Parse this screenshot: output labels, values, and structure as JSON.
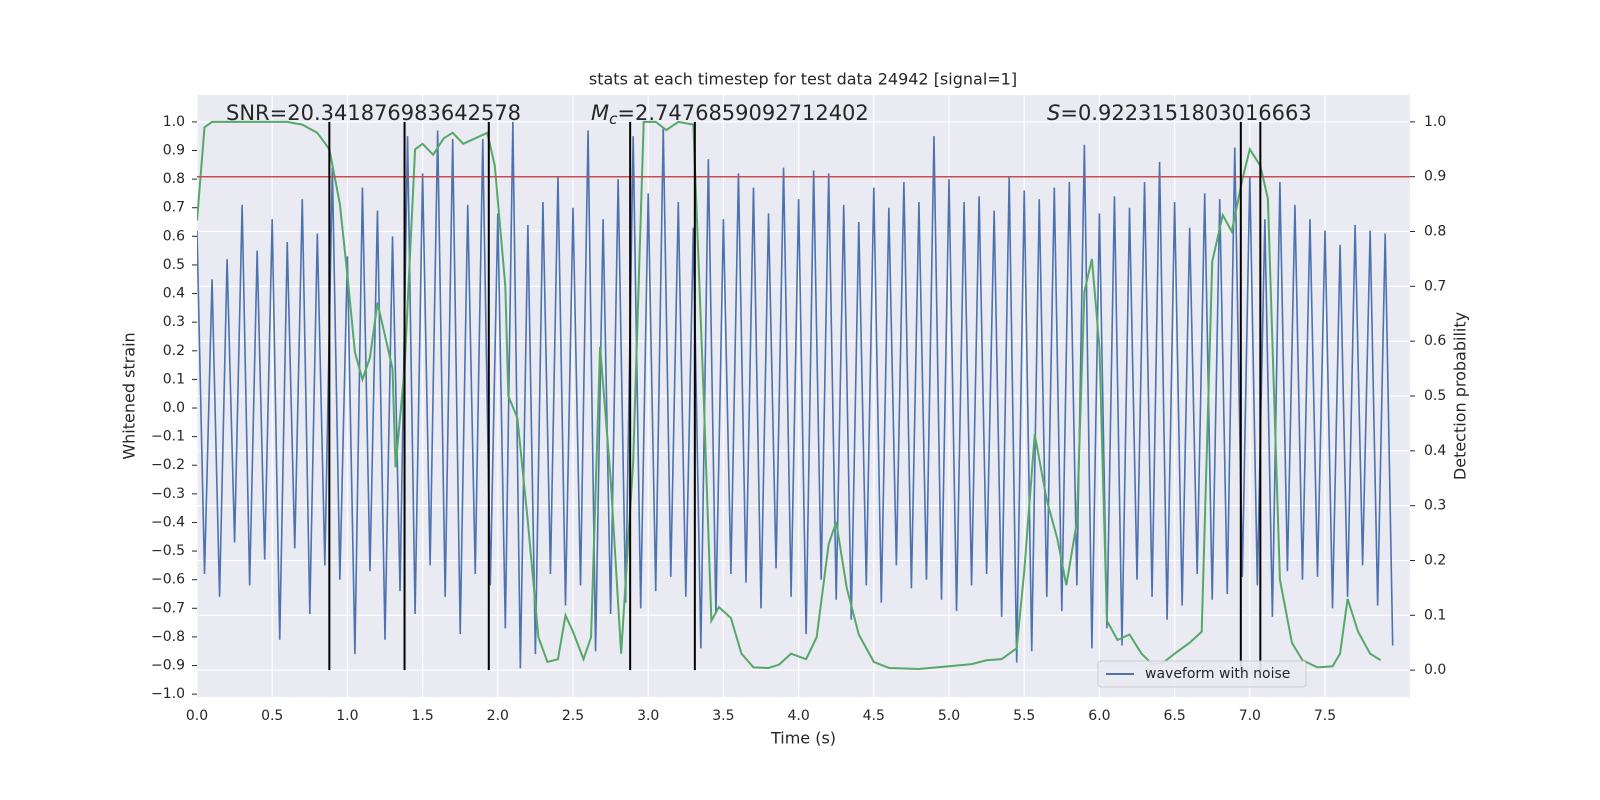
{
  "chart_data": {
    "type": "line",
    "title": "stats at each timestep for test data 24942 [signal=1]",
    "x_label": "Time (s)",
    "y_label": "Whitened strain",
    "y2_label": "Detection probability",
    "annotations": {
      "snr": "SNR=20.341876983642578",
      "mc": {
        "symbol": "M",
        "subscript": "c",
        "text": "=2.7476859092712402"
      },
      "s": {
        "symbol": "S",
        "text": "=0.9223151803016663"
      }
    },
    "xlim": [
      0,
      8.065
    ],
    "ylim": [
      -1.01,
      1.094
    ],
    "y2lim": [
      -0.049,
      1.049
    ],
    "xticks": [
      {
        "value": 0,
        "label": "0.0"
      },
      0.5,
      {
        "value": 1,
        "label": "1.0"
      },
      1.5,
      {
        "value": 2,
        "label": "2.0"
      },
      2.5,
      {
        "value": 3,
        "label": "3.0"
      },
      3.5,
      {
        "value": 4,
        "label": "4.0"
      },
      4.5,
      {
        "value": 5,
        "label": "5.0"
      },
      5.5,
      {
        "value": 6,
        "label": "6.0"
      },
      6.5,
      {
        "value": 7,
        "label": "7.0"
      },
      7.5
    ],
    "yticks": [
      {
        "value": -1,
        "label": "−1.0"
      },
      {
        "value": -0.9,
        "label": "−0.9"
      },
      {
        "value": -0.8,
        "label": "−0.8"
      },
      {
        "value": -0.7,
        "label": "−0.7"
      },
      {
        "value": -0.6,
        "label": "−0.6"
      },
      {
        "value": -0.5,
        "label": "−0.5"
      },
      {
        "value": -0.4,
        "label": "−0.4"
      },
      {
        "value": -0.3,
        "label": "−0.3"
      },
      {
        "value": -0.2,
        "label": "−0.2"
      },
      {
        "value": -0.1,
        "label": "−0.1"
      },
      {
        "value": 0,
        "label": "0.0"
      },
      0.1,
      0.2,
      0.3,
      0.4,
      0.5,
      0.6,
      0.7,
      0.8,
      0.9,
      {
        "value": 1,
        "label": "1.0"
      }
    ],
    "y2ticks": [
      {
        "value": 0,
        "label": "0.0"
      },
      0.1,
      0.2,
      0.3,
      0.4,
      0.5,
      0.6,
      0.7,
      0.8,
      0.9,
      {
        "value": 1,
        "label": "1.0"
      }
    ],
    "grid": true,
    "background": "#eaeaf2",
    "legend": "lower right",
    "series": [
      {
        "name": "waveform with noise",
        "color": "#4c72b0",
        "x": [
          0,
          0.05,
          0.1,
          0.15,
          0.2,
          0.25,
          0.3,
          0.35,
          0.4,
          0.45,
          0.5,
          0.55,
          0.6,
          0.65,
          0.7,
          0.75,
          0.8,
          0.85,
          0.9,
          0.95,
          1,
          1.05,
          1.1,
          1.15,
          1.2,
          1.25,
          1.3,
          1.35,
          1.4,
          1.45,
          1.5,
          1.55,
          1.6,
          1.65,
          1.7,
          1.75,
          1.8,
          1.85,
          1.9,
          1.95,
          2,
          2.05,
          2.1,
          2.15,
          2.2,
          2.25,
          2.3,
          2.35,
          2.4,
          2.45,
          2.5,
          2.55,
          2.6,
          2.65,
          2.7,
          2.75,
          2.8,
          2.85,
          2.9,
          2.95,
          3,
          3.05,
          3.1,
          3.15,
          3.2,
          3.25,
          3.3,
          3.35,
          3.4,
          3.45,
          3.5,
          3.55,
          3.6,
          3.65,
          3.7,
          3.75,
          3.8,
          3.85,
          3.9,
          3.95,
          4,
          4.05,
          4.1,
          4.15,
          4.2,
          4.25,
          4.3,
          4.35,
          4.4,
          4.45,
          4.5,
          4.55,
          4.6,
          4.65,
          4.7,
          4.75,
          4.8,
          4.85,
          4.9,
          4.95,
          5,
          5.05,
          5.1,
          5.15,
          5.2,
          5.25,
          5.3,
          5.35,
          5.4,
          5.45,
          5.5,
          5.55,
          5.6,
          5.65,
          5.7,
          5.75,
          5.8,
          5.85,
          5.9,
          5.95,
          6,
          6.05,
          6.1,
          6.15,
          6.2,
          6.25,
          6.3,
          6.35,
          6.4,
          6.45,
          6.5,
          6.55,
          6.6,
          6.65,
          6.7,
          6.75,
          6.8,
          6.85,
          6.9,
          6.95,
          7,
          7.05,
          7.1,
          7.15,
          7.2,
          7.25,
          7.3,
          7.35,
          7.4,
          7.45,
          7.5,
          7.55,
          7.6,
          7.65,
          7.7,
          7.75,
          7.8,
          7.85,
          7.9,
          7.95
        ],
        "values": [
          0.62,
          -0.58,
          0.45,
          -0.66,
          0.52,
          -0.47,
          0.71,
          -0.62,
          0.55,
          -0.53,
          0.66,
          -0.81,
          0.58,
          -0.49,
          0.73,
          -0.72,
          0.61,
          -0.55,
          0.84,
          -0.6,
          0.53,
          -0.86,
          0.77,
          -0.57,
          0.69,
          -0.81,
          0.6,
          -0.64,
          0.95,
          -0.72,
          0.82,
          -0.55,
          0.97,
          -0.66,
          0.94,
          -0.79,
          0.71,
          -0.58,
          0.94,
          -0.62,
          0.68,
          -0.77,
          1.0,
          -0.91,
          0.64,
          -0.86,
          0.72,
          -0.58,
          0.81,
          -0.69,
          0.7,
          -0.62,
          0.97,
          -0.85,
          0.66,
          -0.72,
          0.8,
          -0.68,
          0.95,
          -0.7,
          0.75,
          -0.64,
          0.98,
          -0.59,
          0.72,
          -0.66,
          0.63,
          -0.84,
          0.87,
          -0.72,
          0.66,
          -0.58,
          0.82,
          -0.61,
          0.77,
          -0.7,
          0.68,
          -0.56,
          0.84,
          -0.66,
          0.73,
          -0.79,
          0.83,
          -0.6,
          0.82,
          -0.67,
          0.71,
          -0.74,
          0.65,
          -0.62,
          0.77,
          -0.68,
          0.7,
          -0.55,
          0.79,
          -0.63,
          0.72,
          -0.6,
          0.95,
          -0.67,
          0.8,
          -0.71,
          0.72,
          -0.62,
          0.74,
          -0.58,
          0.69,
          -0.73,
          0.81,
          -0.89,
          0.76,
          -0.85,
          0.73,
          -0.66,
          0.77,
          -0.71,
          0.79,
          -0.62,
          0.92,
          -0.84,
          0.68,
          -0.77,
          0.74,
          -0.83,
          0.7,
          -0.6,
          0.79,
          -0.66,
          0.86,
          -0.74,
          0.72,
          -0.69,
          0.63,
          -0.58,
          0.75,
          -0.67,
          0.73,
          -0.65,
          0.91,
          -0.59,
          0.81,
          -0.62,
          0.66,
          -0.73,
          0.79,
          -0.57,
          0.71,
          -0.6,
          0.66,
          -0.59,
          0.62,
          -0.7,
          0.57,
          -0.66,
          0.64,
          -0.55,
          0.62,
          -0.69,
          0.61,
          -0.83
        ]
      },
      {
        "color": "#55a868",
        "axis": "y2",
        "x": [
          0,
          0.05,
          0.1,
          0.2,
          0.4,
          0.6,
          0.7,
          0.8,
          0.88,
          0.95,
          1,
          1.05,
          1.1,
          1.15,
          1.2,
          1.25,
          1.3,
          1.32,
          1.38,
          1.45,
          1.5,
          1.57,
          1.64,
          1.7,
          1.77,
          1.85,
          1.93,
          1.98,
          2.05,
          2.07,
          2.13,
          2.2,
          2.27,
          2.33,
          2.4,
          2.45,
          2.5,
          2.57,
          2.62,
          2.68,
          2.75,
          2.82,
          2.9,
          2.97,
          3.05,
          3.12,
          3.2,
          3.3,
          3.37,
          3.42,
          3.47,
          3.55,
          3.62,
          3.7,
          3.8,
          3.87,
          3.95,
          4.05,
          4.12,
          4.2,
          4.25,
          4.32,
          4.4,
          4.5,
          4.6,
          4.8,
          5,
          5.15,
          5.25,
          5.35,
          5.45,
          5.5,
          5.57,
          5.65,
          5.72,
          5.78,
          5.85,
          5.9,
          5.95,
          6,
          6.05,
          6.12,
          6.2,
          6.28,
          6.35,
          6.42,
          6.5,
          6.6,
          6.68,
          6.75,
          6.82,
          6.88,
          6.95,
          7,
          7.07,
          7.12,
          7.2,
          7.28,
          7.35,
          7.45,
          7.55,
          7.6,
          7.65,
          7.72,
          7.8,
          7.87
        ],
        "values": [
          0.82,
          0.99,
          1.0,
          1.0,
          1.0,
          1.0,
          0.995,
          0.98,
          0.95,
          0.85,
          0.72,
          0.58,
          0.53,
          0.57,
          0.67,
          0.61,
          0.55,
          0.37,
          0.55,
          0.95,
          0.96,
          0.94,
          0.97,
          0.98,
          0.96,
          0.97,
          0.98,
          0.92,
          0.7,
          0.5,
          0.46,
          0.27,
          0.06,
          0.015,
          0.02,
          0.1,
          0.07,
          0.02,
          0.06,
          0.59,
          0.35,
          0.03,
          0.38,
          1.0,
          1.0,
          0.985,
          1.0,
          0.995,
          0.49,
          0.09,
          0.115,
          0.095,
          0.03,
          0.005,
          0.004,
          0.01,
          0.03,
          0.02,
          0.06,
          0.23,
          0.27,
          0.15,
          0.065,
          0.015,
          0.004,
          0.002,
          0.007,
          0.011,
          0.018,
          0.02,
          0.04,
          0.18,
          0.43,
          0.31,
          0.24,
          0.155,
          0.27,
          0.69,
          0.75,
          0.59,
          0.09,
          0.055,
          0.065,
          0.03,
          0.011,
          0.013,
          0.03,
          0.05,
          0.07,
          0.745,
          0.83,
          0.8,
          0.895,
          0.95,
          0.92,
          0.86,
          0.165,
          0.05,
          0.018,
          0.005,
          0.007,
          0.03,
          0.13,
          0.07,
          0.03,
          0.018
        ]
      }
    ],
    "vlines": [
      0.88,
      1.38,
      1.94,
      2.88,
      3.31,
      6.94,
      7.07
    ],
    "vline_color": "#000000",
    "threshold": 0.9,
    "threshold_color": "#c44e52"
  }
}
